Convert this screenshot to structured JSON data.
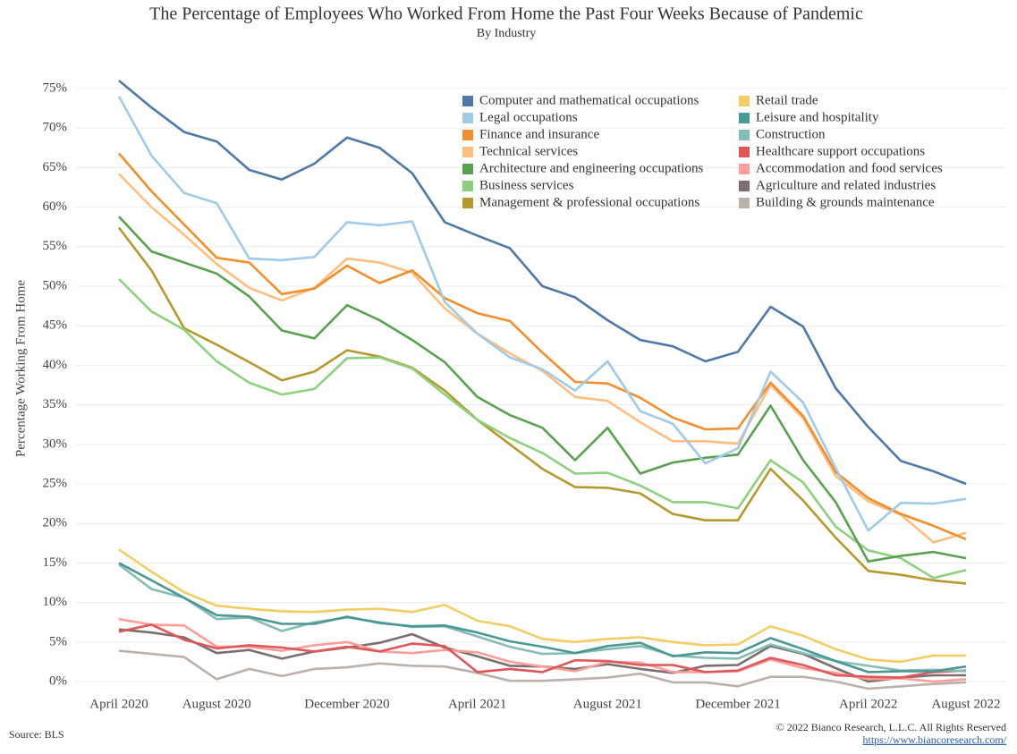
{
  "chart_data": {
    "type": "line",
    "title": "The Percentage of Employees Who Worked From Home the Past Four Weeks Because of Pandemic",
    "subtitle": "By Industry",
    "y_label": "Percentage Working From Home",
    "source": "Source: BLS",
    "copyright": "© 2022 Bianco Research, L.L.C. All Rights Reserved",
    "url": "https://www.biancoresearch.com/",
    "categories": [
      "April 2020",
      null,
      null,
      "August 2020",
      null,
      null,
      null,
      "December 2020",
      null,
      null,
      null,
      "April 2021",
      null,
      null,
      null,
      "August 2021",
      null,
      null,
      null,
      "December 2021",
      null,
      null,
      null,
      "April 2022",
      null,
      null,
      "August 2022"
    ],
    "ylim": [
      -1.5,
      77
    ],
    "yticks": [
      {
        "value": 0,
        "label": "0%"
      },
      {
        "value": 5,
        "label": "5%"
      },
      {
        "value": 10,
        "label": "10%"
      },
      {
        "value": 15,
        "label": "15%"
      },
      {
        "value": 20,
        "label": "20%"
      },
      {
        "value": 25,
        "label": "25%"
      },
      {
        "value": 30,
        "label": "30%"
      },
      {
        "value": 35,
        "label": "35%"
      },
      {
        "value": 40,
        "label": "40%"
      },
      {
        "value": 45,
        "label": "45%"
      },
      {
        "value": 50,
        "label": "50%"
      },
      {
        "value": 55,
        "label": "55%"
      },
      {
        "value": 60,
        "label": "60%"
      },
      {
        "value": 65,
        "label": "65%"
      },
      {
        "value": 70,
        "label": "70%"
      },
      {
        "value": 75,
        "label": "75%"
      }
    ],
    "grid": true,
    "series": [
      {
        "name": "Computer and mathematical occupations",
        "color": "#4e79a7",
        "values": [
          76,
          72.6,
          69.5,
          68.3,
          64.7,
          63.5,
          65.5,
          68.8,
          67.5,
          64.3,
          58.1,
          56.4,
          54.8,
          50,
          48.6,
          45.7,
          43.2,
          42.4,
          40.5,
          41.7,
          47.4,
          44.9,
          37.1,
          32.2,
          27.9,
          26.6,
          25
        ]
      },
      {
        "name": "Legal occupations",
        "color": "#a0cbe8",
        "values": [
          74,
          66.5,
          61.8,
          60.5,
          53.5,
          53.3,
          53.7,
          58.1,
          57.7,
          58.2,
          48,
          44,
          41,
          39.5,
          36.8,
          40.5,
          34.2,
          32.6,
          27.6,
          29.5,
          39.2,
          35.3,
          27,
          19.1,
          22.6,
          22.5,
          23.1
        ]
      },
      {
        "name": "Finance and insurance",
        "color": "#f28e2b",
        "values": [
          66.8,
          62,
          57.8,
          53.6,
          53,
          49,
          49.7,
          52.6,
          50.4,
          52,
          48.5,
          46.6,
          45.6,
          41.6,
          37.9,
          37.7,
          35.9,
          33.4,
          31.9,
          32,
          37.8,
          33.6,
          26.5,
          23.2,
          21.2,
          19.7,
          18
        ]
      },
      {
        "name": "Technical services",
        "color": "#ffbe7d",
        "values": [
          64.2,
          60,
          56.5,
          52.8,
          49.8,
          48.2,
          49.8,
          53.5,
          53,
          51.7,
          47.2,
          44,
          41.5,
          39.3,
          36,
          35.5,
          32.8,
          30.4,
          30.4,
          30.1,
          37.5,
          33.3,
          26,
          22.8,
          21.1,
          17.6,
          18.8
        ]
      },
      {
        "name": "Architecture and engineering occupations",
        "color": "#59a14f",
        "values": [
          58.8,
          54.4,
          53,
          51.6,
          48.7,
          44.4,
          43.4,
          47.6,
          45.7,
          43.2,
          40.4,
          36,
          33.7,
          32.1,
          28,
          32.1,
          26.3,
          27.7,
          28.3,
          28.7,
          34.9,
          28,
          22.7,
          15.2,
          15.9,
          16.4,
          15.6
        ]
      },
      {
        "name": "Business services",
        "color": "#8cd17d",
        "values": [
          50.9,
          46.8,
          44.5,
          40.5,
          37.8,
          36.3,
          37,
          40.9,
          41,
          39.6,
          36.3,
          33.1,
          30.8,
          28.9,
          26.3,
          26.4,
          24.8,
          22.7,
          22.7,
          21.9,
          28,
          25.2,
          19.6,
          16.6,
          15.6,
          13.1,
          14.1
        ]
      },
      {
        "name": "Management & professional occupations",
        "color": "#b6992d",
        "values": [
          57.4,
          52,
          44.7,
          42.6,
          40.4,
          38.1,
          39.2,
          41.9,
          41.1,
          39.7,
          36.8,
          33.1,
          30,
          26.9,
          24.6,
          24.5,
          23.8,
          21.2,
          20.4,
          20.4,
          26.9,
          22.9,
          18.2,
          14,
          13.5,
          12.8,
          12.4
        ]
      },
      {
        "name": "Retail trade",
        "color": "#f1ce63",
        "values": [
          16.7,
          13.9,
          11.3,
          9.6,
          9.2,
          8.9,
          8.8,
          9.1,
          9.2,
          8.8,
          9.7,
          7.7,
          7,
          5.4,
          5,
          5.4,
          5.6,
          5,
          4.6,
          4.7,
          7,
          5.8,
          4.1,
          2.8,
          2.5,
          3.3,
          3.3
        ]
      },
      {
        "name": "Leisure and hospitality",
        "color": "#499894",
        "values": [
          15,
          12.8,
          10.6,
          8.4,
          8.2,
          7.3,
          7.3,
          8.2,
          7.4,
          7,
          7.1,
          6.2,
          5.1,
          4.4,
          3.6,
          4.5,
          4.9,
          3.2,
          3.7,
          3.6,
          5.5,
          4.1,
          2.6,
          1.2,
          1.3,
          1.3,
          1.9
        ]
      },
      {
        "name": "Construction",
        "color": "#86bcb6",
        "values": [
          14.8,
          11.7,
          10.6,
          7.9,
          8.1,
          6.4,
          7.5,
          8.1,
          7.5,
          6.9,
          7,
          5.7,
          4.4,
          3.5,
          3.6,
          4.1,
          4.5,
          3.3,
          3,
          2.9,
          4.7,
          3.6,
          2.6,
          2,
          1.4,
          1.5,
          1.3
        ]
      },
      {
        "name": "Healthcare support occupations",
        "color": "#e15759",
        "values": [
          6.3,
          7.2,
          5.3,
          4.2,
          4.6,
          4.3,
          3.8,
          4.4,
          3.8,
          4.8,
          4.5,
          1.2,
          1.6,
          1.2,
          2.7,
          2.6,
          2.1,
          2.1,
          1.2,
          1.4,
          3,
          2.1,
          0.8,
          0.6,
          0.5,
          1.2,
          1.4
        ]
      },
      {
        "name": "Accommodation and food services",
        "color": "#ff9d9a",
        "values": [
          7.9,
          7.2,
          7.1,
          4.4,
          4.4,
          3.9,
          4.6,
          5,
          3.8,
          3.6,
          4,
          3.7,
          2.5,
          1.9,
          1.3,
          2.5,
          2.4,
          1.2,
          1.2,
          1.3,
          2.8,
          1.7,
          1.1,
          0.3,
          0.4,
          0,
          0.3
        ]
      },
      {
        "name": "Agriculture and related industries",
        "color": "#79706e",
        "values": [
          6.6,
          6.2,
          5.6,
          3.6,
          4,
          2.9,
          3.8,
          4.3,
          4.9,
          6,
          4.3,
          3.2,
          2,
          1.9,
          1.6,
          2.2,
          1.6,
          1.1,
          2,
          2.1,
          4.5,
          3.5,
          1.7,
          0,
          0.5,
          0.8,
          0.8
        ]
      },
      {
        "name": "Building & grounds maintenance",
        "color": "#bab0ac",
        "values": [
          3.9,
          3.5,
          3.1,
          0.3,
          1.6,
          0.7,
          1.6,
          1.8,
          2.3,
          2,
          1.9,
          1.1,
          0.1,
          0.1,
          0.3,
          0.5,
          1,
          -0.1,
          -0.1,
          -0.6,
          0.6,
          0.6,
          0,
          -0.9,
          -0.6,
          -0.3,
          -0.1
        ]
      }
    ]
  }
}
